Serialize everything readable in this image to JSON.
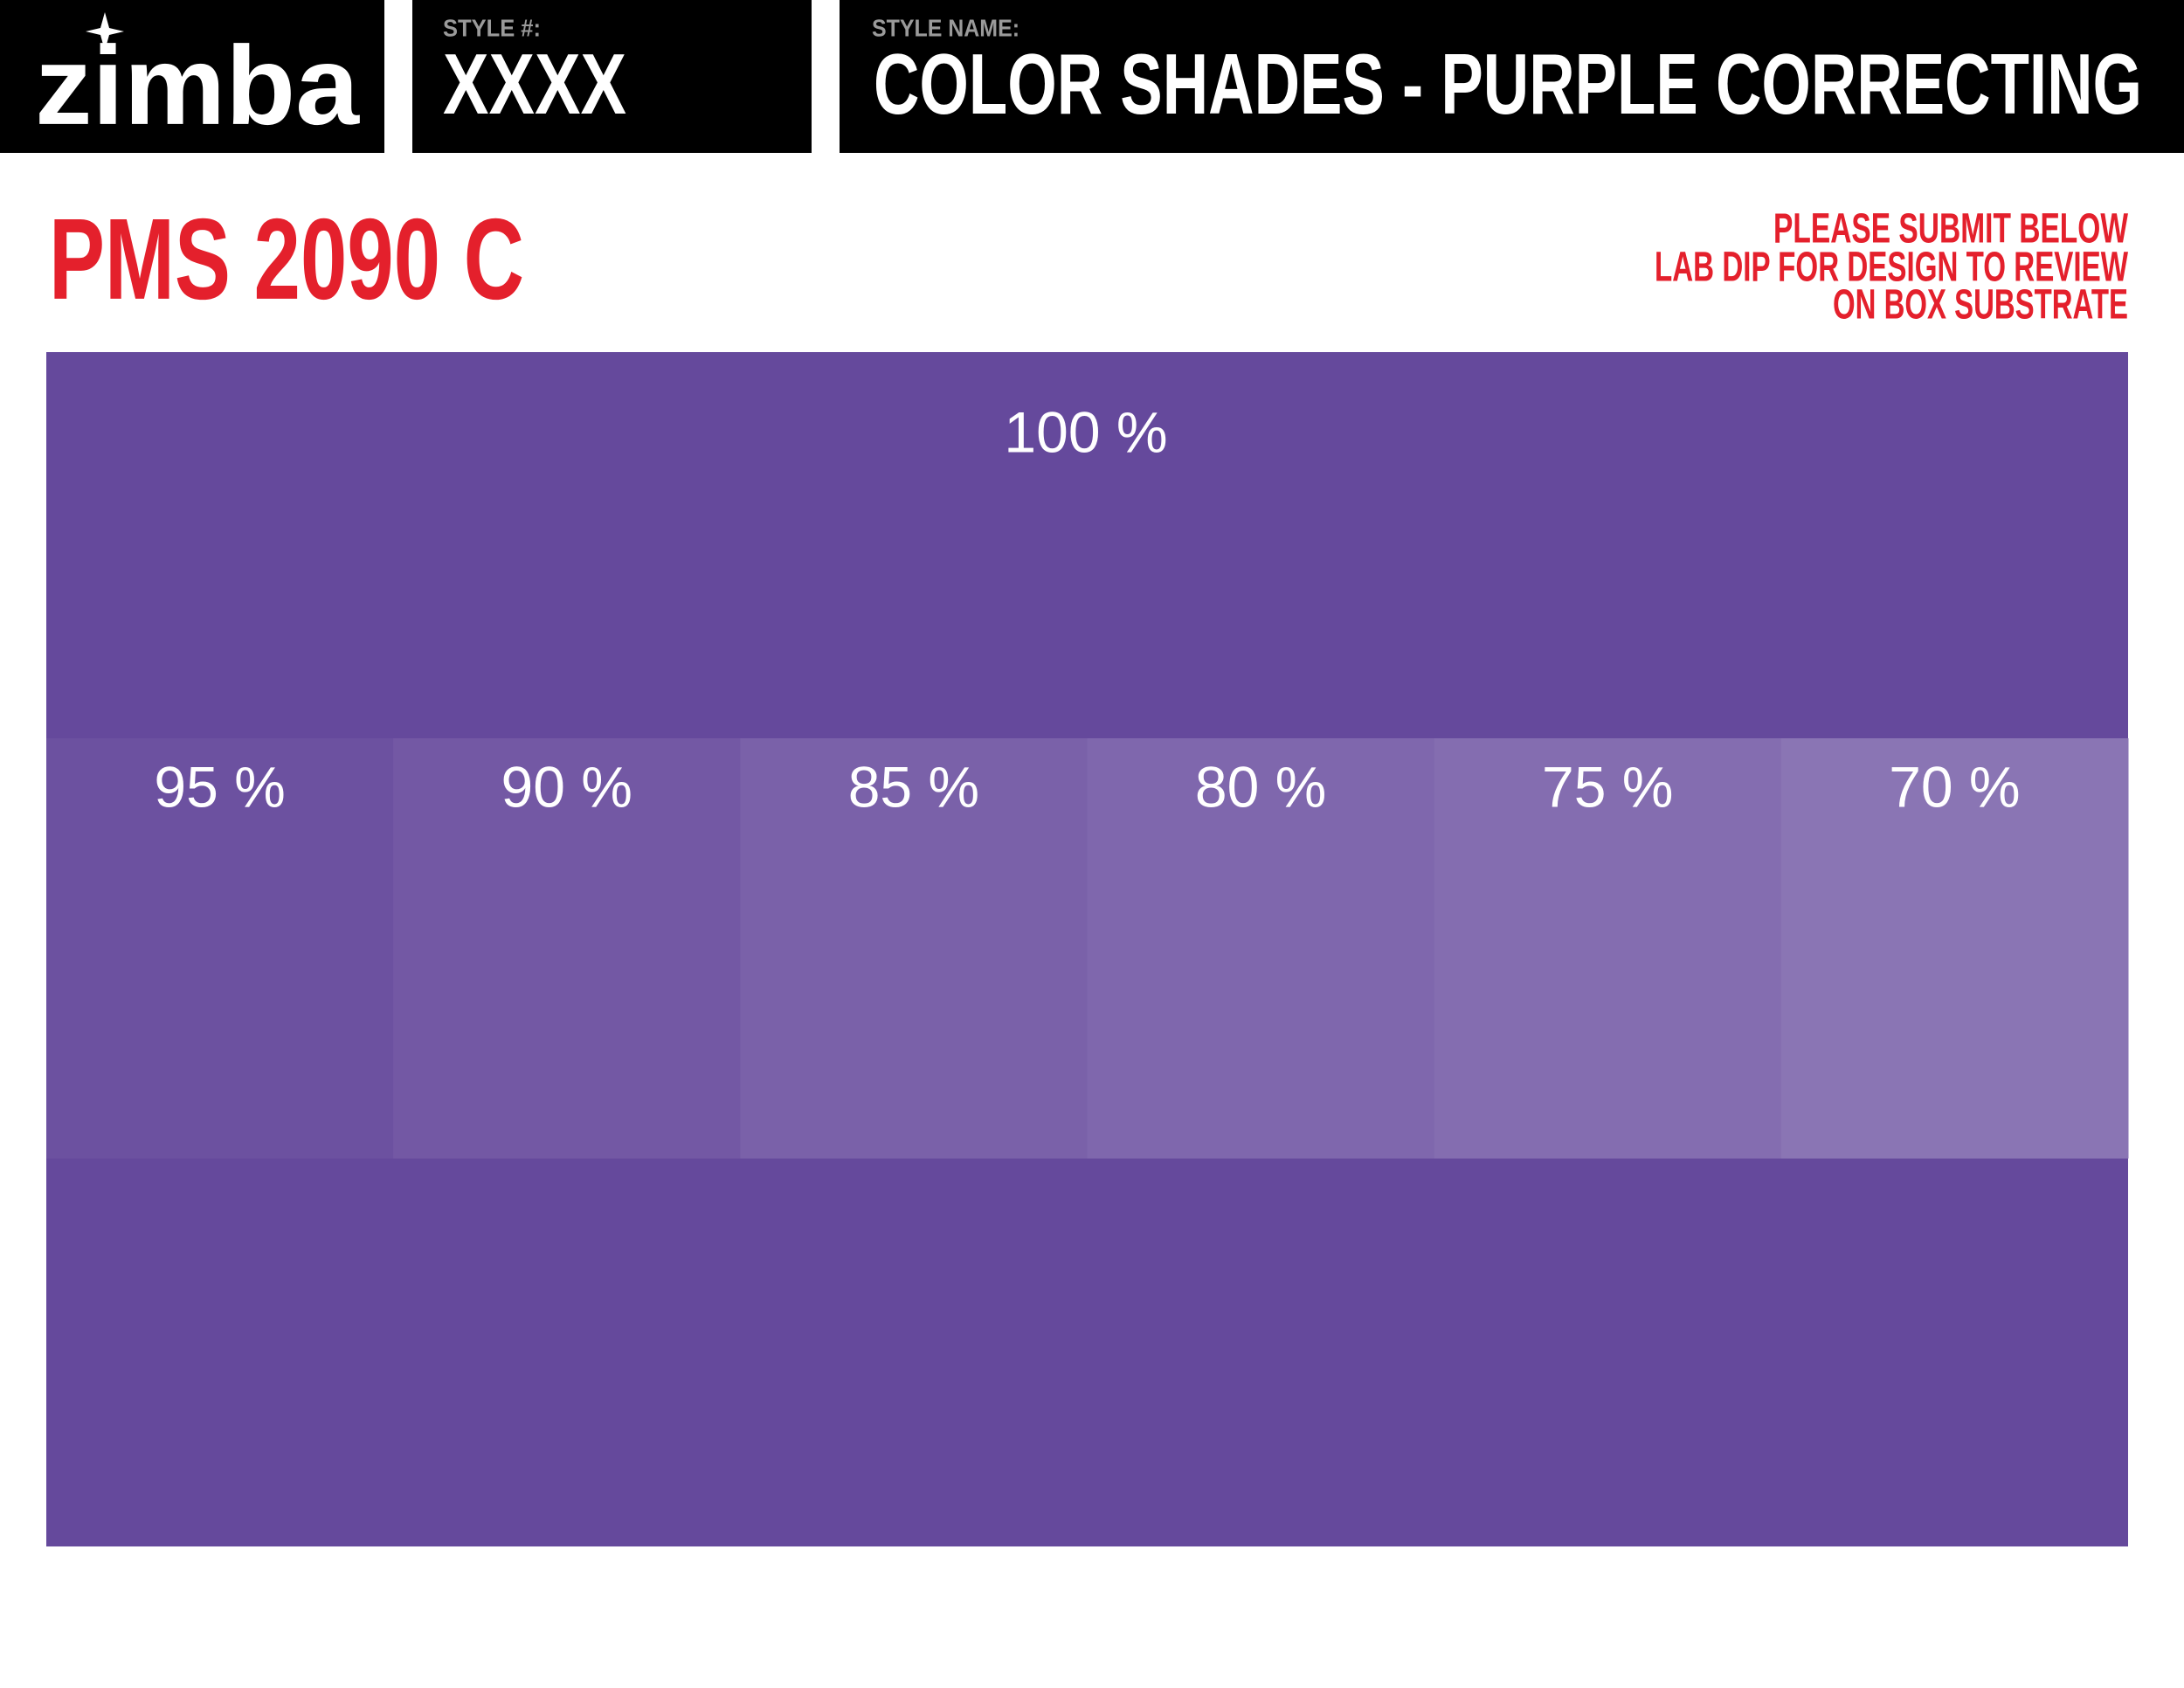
{
  "header": {
    "logo": "zimba",
    "style_number": {
      "label": "STYLE #:",
      "value": "XXXX"
    },
    "style_name": {
      "label": "STYLE NAME:",
      "value": "COLOR SHADES - PURPLE CORRECTING"
    }
  },
  "pms": "PMS 2090 C",
  "note": [
    "PLEASE SUBMIT BELOW",
    "LAB DIP FOR DESIGN TO REVIEW",
    "ON BOX SUBSTRATE"
  ],
  "base": {
    "label": "100 %",
    "color": "#65499c"
  },
  "shades": [
    {
      "label": "95 %",
      "color": "#6c51a0"
    },
    {
      "label": "90 %",
      "color": "#7358a4"
    },
    {
      "label": "85 %",
      "color": "#7a61a9"
    },
    {
      "label": "80 %",
      "color": "#7f67ad"
    },
    {
      "label": "75 %",
      "color": "#846db0"
    },
    {
      "label": "70 %",
      "color": "#8a75b4"
    }
  ]
}
